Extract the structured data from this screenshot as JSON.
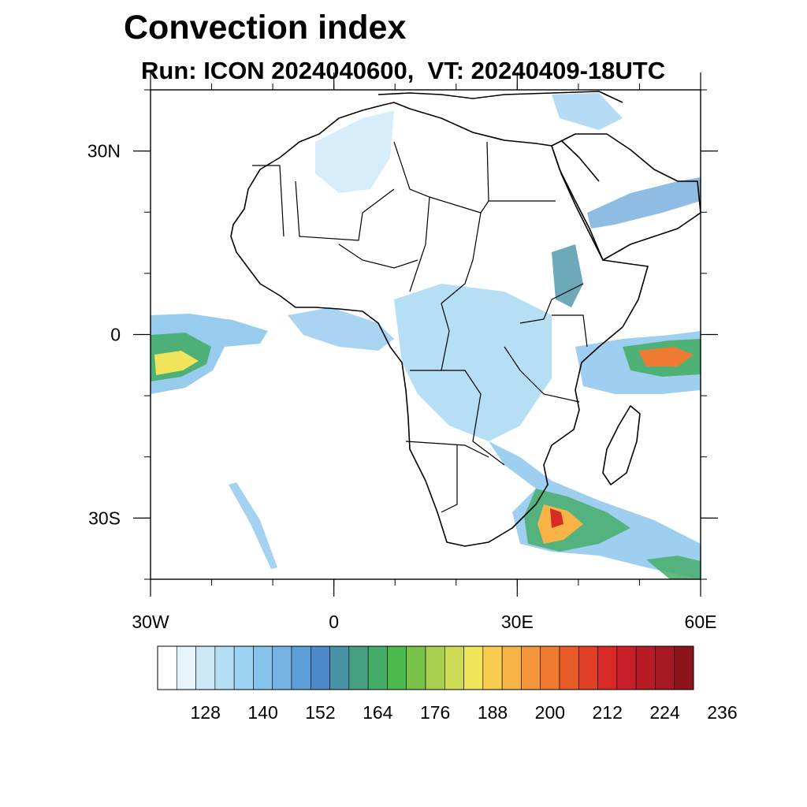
{
  "title": "Convection index",
  "subtitle": "Run: ICON 2024040600,  VT: 20240409-18UTC",
  "map": {
    "region": "Africa",
    "lon_range": [
      -30,
      60
    ],
    "lat_range": [
      -40,
      40
    ],
    "x_ticks": [
      {
        "value": -30,
        "label": "30W"
      },
      {
        "value": 0,
        "label": "0"
      },
      {
        "value": 30,
        "label": "30E"
      },
      {
        "value": 60,
        "label": "60E"
      }
    ],
    "y_ticks": [
      {
        "value": 30,
        "label": "30N"
      },
      {
        "value": 0,
        "label": "0"
      },
      {
        "value": -30,
        "label": "30S"
      }
    ]
  },
  "colorbar": {
    "colors": [
      "#ffffff",
      "#e8f4fb",
      "#cde8f7",
      "#b5ddf4",
      "#9dd3f2",
      "#86c3ec",
      "#74b3e3",
      "#5f9fd7",
      "#4b89c9",
      "#4993a8",
      "#46a183",
      "#45ad68",
      "#4cb94c",
      "#79c24a",
      "#a8cf4e",
      "#cedc55",
      "#efe45a",
      "#f8cd52",
      "#f7b346",
      "#f4963b",
      "#ef7a31",
      "#e85c29",
      "#e13f26",
      "#d72a27",
      "#c81f28",
      "#b71b26",
      "#a51822",
      "#8e141c"
    ],
    "labels": [
      "128",
      "140",
      "152",
      "164",
      "176",
      "188",
      "200",
      "212",
      "224",
      "236"
    ]
  }
}
